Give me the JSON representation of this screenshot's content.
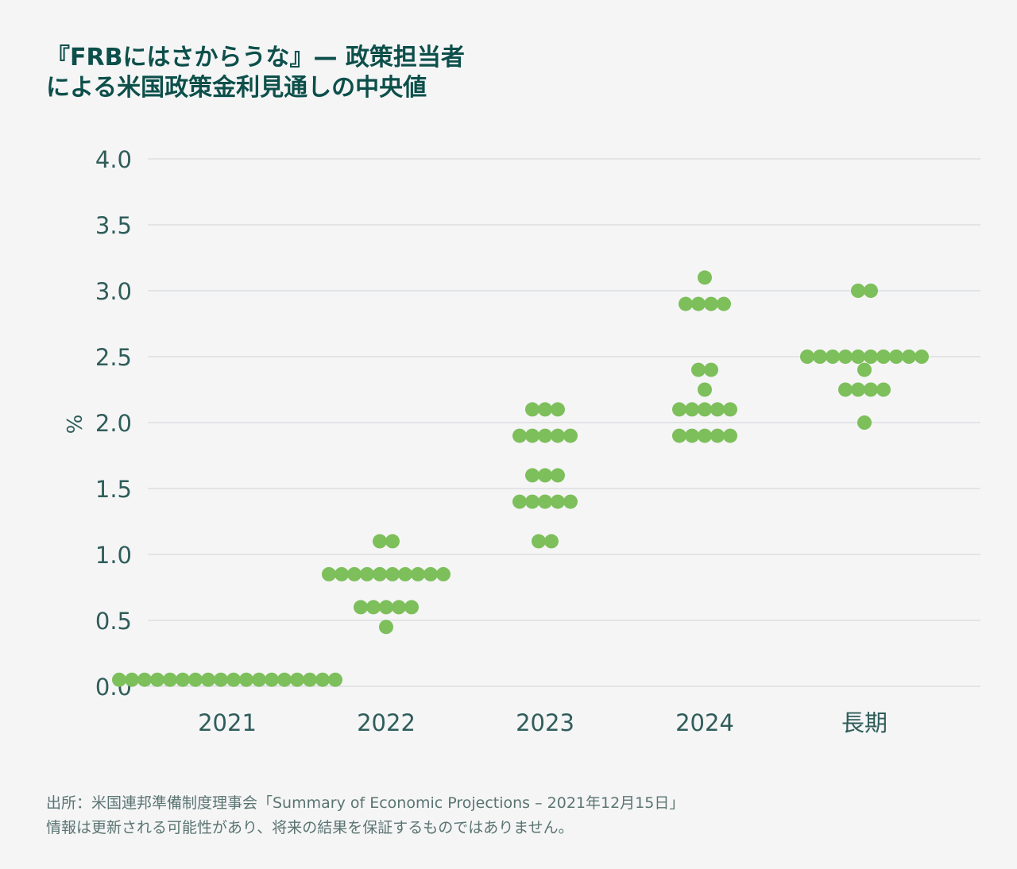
{
  "title": {
    "line1": "『FRBにはさからうな』— 政策担当者",
    "line2": "による米国政策金利見通しの中央値"
  },
  "colors": {
    "title": "#0d4f4a",
    "axis_text": "#2f5d5a",
    "grid": "#dcdfe1",
    "dot": "#7dbf5b",
    "source_text": "#5a7470",
    "background": "#f5f5f6"
  },
  "chart_data": {
    "type": "scatter",
    "ylabel": "%",
    "ylim": [
      0,
      4
    ],
    "yticks": [
      "0.0",
      "0.5",
      "1.0",
      "1.5",
      "2.0",
      "2.5",
      "3.0",
      "3.5",
      "4.0"
    ],
    "categories": [
      "2021",
      "2022",
      "2023",
      "2024",
      "長期"
    ],
    "grid": true,
    "groups": [
      {
        "category": "2021",
        "rows": [
          {
            "y": 0.05,
            "count": 18
          }
        ]
      },
      {
        "category": "2022",
        "rows": [
          {
            "y": 1.1,
            "count": 2
          },
          {
            "y": 0.85,
            "count": 10
          },
          {
            "y": 0.6,
            "count": 5
          },
          {
            "y": 0.45,
            "count": 1
          }
        ]
      },
      {
        "category": "2023",
        "rows": [
          {
            "y": 2.1,
            "count": 3
          },
          {
            "y": 1.9,
            "count": 5
          },
          {
            "y": 1.6,
            "count": 3
          },
          {
            "y": 1.4,
            "count": 5
          },
          {
            "y": 1.1,
            "count": 2
          }
        ]
      },
      {
        "category": "2024",
        "rows": [
          {
            "y": 3.1,
            "count": 1
          },
          {
            "y": 2.9,
            "count": 4
          },
          {
            "y": 2.4,
            "count": 2
          },
          {
            "y": 2.25,
            "count": 1
          },
          {
            "y": 2.1,
            "count": 5
          },
          {
            "y": 1.9,
            "count": 5
          }
        ]
      },
      {
        "category": "長期",
        "rows": [
          {
            "y": 3.0,
            "count": 2
          },
          {
            "y": 2.5,
            "count": 10
          },
          {
            "y": 2.4,
            "count": 1
          },
          {
            "y": 2.25,
            "count": 4
          },
          {
            "y": 2.0,
            "count": 1
          }
        ]
      }
    ]
  },
  "source": {
    "line1": "出所：米国連邦準備制度理事会「Summary of Economic Projections – 2021年12月15日」",
    "line2": "情報は更新される可能性があり、将来の結果を保証するものではありません。"
  }
}
